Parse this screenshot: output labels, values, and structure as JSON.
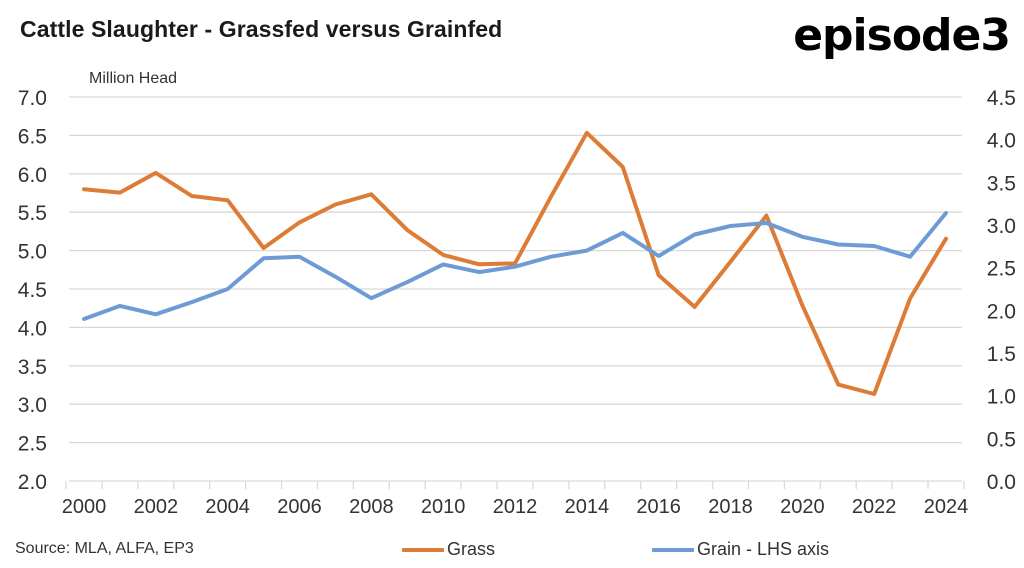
{
  "header": {
    "title": "Cattle Slaughter - Grassfed versus Grainfed",
    "logo": "episode3"
  },
  "footer": {
    "source": "Source: MLA, ALFA, EP3"
  },
  "colors": {
    "grass": "#DD7C37",
    "grain": "#6E9BD6",
    "grid": "#D9D9D9",
    "text": "#333333"
  },
  "chart_data": {
    "type": "line",
    "title": "Cattle Slaughter - Grassfed versus Grainfed",
    "xlabel": "",
    "ylabel_left": "Million Head",
    "ylabel_right": "",
    "x": [
      2000,
      2001,
      2002,
      2003,
      2004,
      2005,
      2006,
      2007,
      2008,
      2009,
      2010,
      2011,
      2012,
      2013,
      2014,
      2015,
      2016,
      2017,
      2018,
      2019,
      2020,
      2021,
      2022,
      2023,
      2024
    ],
    "x_tick_labels": [
      "2000",
      "2002",
      "2004",
      "2006",
      "2008",
      "2010",
      "2012",
      "2014",
      "2016",
      "2018",
      "2020",
      "2022",
      "2024"
    ],
    "y_left": {
      "range": [
        2.0,
        7.0
      ],
      "ticks": [
        "2.0",
        "2.5",
        "3.0",
        "3.5",
        "4.0",
        "4.5",
        "5.0",
        "5.5",
        "6.0",
        "6.5",
        "7.0"
      ]
    },
    "y_right": {
      "range": [
        0.0,
        4.5
      ],
      "ticks": [
        "0.0",
        "0.5",
        "1.0",
        "1.5",
        "2.0",
        "2.5",
        "3.0",
        "3.5",
        "4.0",
        "4.5"
      ]
    },
    "grid": true,
    "legend_position": "bottom",
    "series": [
      {
        "name": "Grass",
        "axis": "right",
        "color": "#DD7C37",
        "values": [
          3.42,
          3.38,
          3.61,
          3.34,
          3.29,
          2.73,
          3.03,
          3.24,
          3.36,
          2.94,
          2.65,
          2.54,
          2.55,
          3.33,
          4.08,
          3.68,
          2.41,
          2.04,
          2.57,
          3.11,
          2.06,
          1.13,
          1.02,
          2.14,
          2.84
        ]
      },
      {
        "name": "Grain - LHS axis",
        "axis": "left",
        "color": "#6E9BD6",
        "values": [
          4.11,
          4.28,
          4.17,
          4.33,
          4.5,
          4.9,
          4.92,
          4.66,
          4.38,
          4.59,
          4.82,
          4.72,
          4.79,
          4.92,
          5.0,
          5.23,
          4.93,
          5.21,
          5.32,
          5.36,
          5.18,
          5.08,
          5.06,
          4.92,
          5.49
        ]
      }
    ],
    "source": "Source: MLA, ALFA, EP3"
  }
}
